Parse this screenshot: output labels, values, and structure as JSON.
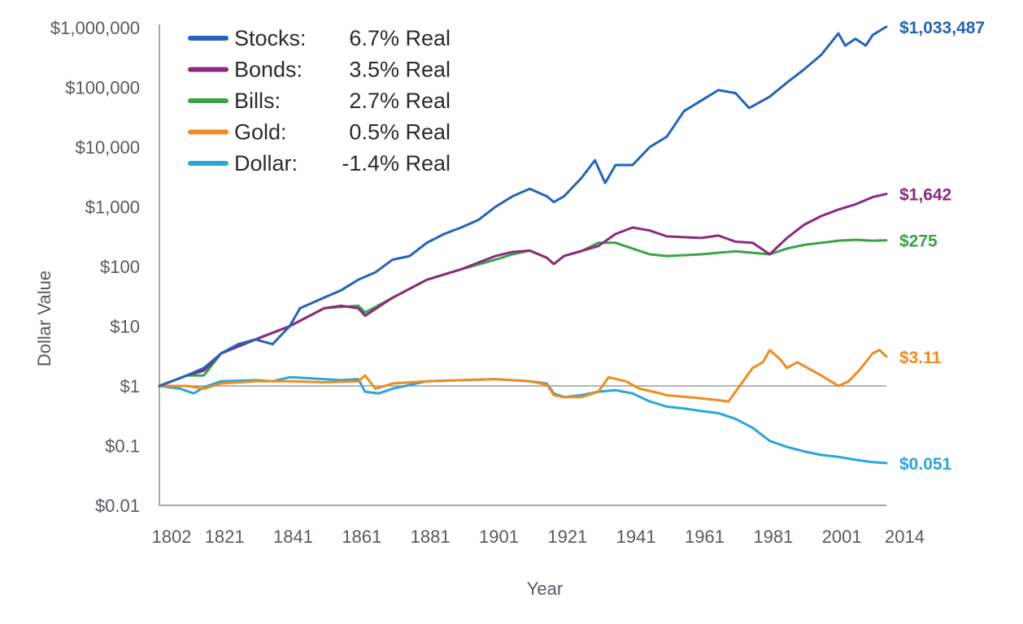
{
  "chart_data": {
    "type": "line",
    "xlabel": "Year",
    "ylabel": "Dollar Value",
    "y_scale": "log",
    "ylim": [
      0.01,
      1000000
    ],
    "xlim": [
      1802,
      2014
    ],
    "x_ticks": [
      "1802",
      "1821",
      "1841",
      "1861",
      "1881",
      "1901",
      "1921",
      "1941",
      "1961",
      "1981",
      "2001",
      "2014"
    ],
    "y_ticks": [
      {
        "value": 1000000,
        "label": "$1,000,000"
      },
      {
        "value": 100000,
        "label": "$100,000"
      },
      {
        "value": 10000,
        "label": "$10,000"
      },
      {
        "value": 1000,
        "label": "$1,000"
      },
      {
        "value": 100,
        "label": "$100"
      },
      {
        "value": 10,
        "label": "$10"
      },
      {
        "value": 1,
        "label": "$1"
      },
      {
        "value": 0.1,
        "label": "$0.1"
      },
      {
        "value": 0.01,
        "label": "$0.01"
      }
    ],
    "reference_line": 1,
    "legend_position": "top-left",
    "series": [
      {
        "name": "Stocks:",
        "rate": "6.7% Real",
        "color": "#2563b8",
        "end_label": "$1,033,487",
        "points": [
          [
            1802,
            1
          ],
          [
            1810,
            1.5
          ],
          [
            1815,
            2
          ],
          [
            1820,
            3.5
          ],
          [
            1825,
            5
          ],
          [
            1830,
            6
          ],
          [
            1835,
            5
          ],
          [
            1840,
            10
          ],
          [
            1843,
            20
          ],
          [
            1850,
            30
          ],
          [
            1855,
            40
          ],
          [
            1860,
            60
          ],
          [
            1865,
            80
          ],
          [
            1870,
            130
          ],
          [
            1875,
            150
          ],
          [
            1880,
            250
          ],
          [
            1885,
            350
          ],
          [
            1890,
            450
          ],
          [
            1895,
            600
          ],
          [
            1900,
            1000
          ],
          [
            1905,
            1500
          ],
          [
            1910,
            2000
          ],
          [
            1915,
            1500
          ],
          [
            1917,
            1200
          ],
          [
            1920,
            1500
          ],
          [
            1925,
            3000
          ],
          [
            1929,
            6000
          ],
          [
            1932,
            2500
          ],
          [
            1935,
            5000
          ],
          [
            1940,
            5000
          ],
          [
            1945,
            10000
          ],
          [
            1950,
            15000
          ],
          [
            1955,
            40000
          ],
          [
            1960,
            60000
          ],
          [
            1965,
            90000
          ],
          [
            1970,
            80000
          ],
          [
            1974,
            45000
          ],
          [
            1980,
            70000
          ],
          [
            1985,
            120000
          ],
          [
            1990,
            200000
          ],
          [
            1995,
            350000
          ],
          [
            2000,
            800000
          ],
          [
            2002,
            500000
          ],
          [
            2005,
            650000
          ],
          [
            2008,
            500000
          ],
          [
            2010,
            750000
          ],
          [
            2014,
            1033487
          ]
        ]
      },
      {
        "name": "Bonds:",
        "rate": "3.5% Real",
        "color": "#8b2a7d",
        "end_label": "$1,642",
        "points": [
          [
            1802,
            1
          ],
          [
            1810,
            1.5
          ],
          [
            1815,
            1.8
          ],
          [
            1820,
            3.5
          ],
          [
            1830,
            6
          ],
          [
            1840,
            10
          ],
          [
            1850,
            20
          ],
          [
            1855,
            22
          ],
          [
            1860,
            20
          ],
          [
            1862,
            15
          ],
          [
            1870,
            30
          ],
          [
            1880,
            60
          ],
          [
            1890,
            90
          ],
          [
            1900,
            150
          ],
          [
            1905,
            175
          ],
          [
            1910,
            185
          ],
          [
            1915,
            140
          ],
          [
            1917,
            110
          ],
          [
            1920,
            150
          ],
          [
            1930,
            220
          ],
          [
            1935,
            350
          ],
          [
            1940,
            450
          ],
          [
            1945,
            400
          ],
          [
            1950,
            320
          ],
          [
            1960,
            300
          ],
          [
            1965,
            330
          ],
          [
            1970,
            260
          ],
          [
            1975,
            250
          ],
          [
            1980,
            160
          ],
          [
            1985,
            300
          ],
          [
            1990,
            500
          ],
          [
            1995,
            700
          ],
          [
            2000,
            900
          ],
          [
            2005,
            1100
          ],
          [
            2010,
            1450
          ],
          [
            2014,
            1642
          ]
        ]
      },
      {
        "name": "Bills:",
        "rate": "2.7% Real",
        "color": "#3ba24a",
        "end_label": "$275",
        "points": [
          [
            1802,
            1
          ],
          [
            1810,
            1.5
          ],
          [
            1815,
            1.5
          ],
          [
            1820,
            3.5
          ],
          [
            1830,
            6
          ],
          [
            1840,
            10
          ],
          [
            1850,
            20
          ],
          [
            1860,
            22
          ],
          [
            1862,
            17
          ],
          [
            1870,
            30
          ],
          [
            1880,
            60
          ],
          [
            1890,
            90
          ],
          [
            1900,
            130
          ],
          [
            1905,
            160
          ],
          [
            1910,
            185
          ],
          [
            1915,
            140
          ],
          [
            1917,
            110
          ],
          [
            1920,
            150
          ],
          [
            1925,
            180
          ],
          [
            1930,
            250
          ],
          [
            1935,
            250
          ],
          [
            1940,
            200
          ],
          [
            1945,
            160
          ],
          [
            1950,
            150
          ],
          [
            1960,
            160
          ],
          [
            1970,
            180
          ],
          [
            1975,
            170
          ],
          [
            1980,
            160
          ],
          [
            1985,
            200
          ],
          [
            1990,
            230
          ],
          [
            2000,
            270
          ],
          [
            2005,
            280
          ],
          [
            2010,
            270
          ],
          [
            2014,
            275
          ]
        ]
      },
      {
        "name": "Gold:",
        "rate": "0.5% Real",
        "color": "#ee8c1f",
        "end_label": "$3.11",
        "points": [
          [
            1802,
            1
          ],
          [
            1810,
            1
          ],
          [
            1815,
            0.9
          ],
          [
            1820,
            1.1
          ],
          [
            1830,
            1.2
          ],
          [
            1840,
            1.2
          ],
          [
            1850,
            1.15
          ],
          [
            1860,
            1.2
          ],
          [
            1862,
            1.5
          ],
          [
            1865,
            0.9
          ],
          [
            1870,
            1.1
          ],
          [
            1880,
            1.2
          ],
          [
            1890,
            1.25
          ],
          [
            1900,
            1.3
          ],
          [
            1910,
            1.2
          ],
          [
            1915,
            1.05
          ],
          [
            1917,
            0.7
          ],
          [
            1920,
            0.65
          ],
          [
            1925,
            0.65
          ],
          [
            1930,
            0.8
          ],
          [
            1933,
            1.4
          ],
          [
            1938,
            1.2
          ],
          [
            1942,
            0.9
          ],
          [
            1946,
            0.8
          ],
          [
            1950,
            0.7
          ],
          [
            1960,
            0.62
          ],
          [
            1968,
            0.55
          ],
          [
            1970,
            0.8
          ],
          [
            1975,
            2
          ],
          [
            1978,
            2.5
          ],
          [
            1980,
            4
          ],
          [
            1983,
            2.8
          ],
          [
            1985,
            2
          ],
          [
            1988,
            2.5
          ],
          [
            1995,
            1.5
          ],
          [
            2000,
            1
          ],
          [
            2003,
            1.2
          ],
          [
            2006,
            1.8
          ],
          [
            2010,
            3.5
          ],
          [
            2012,
            4
          ],
          [
            2014,
            3.11
          ]
        ]
      },
      {
        "name": "Dollar:",
        "rate": "-1.4% Real",
        "color": "#2aa6dc",
        "end_label": "$0.051",
        "points": [
          [
            1802,
            1
          ],
          [
            1808,
            0.9
          ],
          [
            1812,
            0.75
          ],
          [
            1815,
            0.95
          ],
          [
            1820,
            1.2
          ],
          [
            1830,
            1.25
          ],
          [
            1835,
            1.2
          ],
          [
            1840,
            1.4
          ],
          [
            1845,
            1.35
          ],
          [
            1850,
            1.3
          ],
          [
            1855,
            1.25
          ],
          [
            1860,
            1.3
          ],
          [
            1862,
            0.8
          ],
          [
            1866,
            0.75
          ],
          [
            1870,
            0.9
          ],
          [
            1880,
            1.2
          ],
          [
            1890,
            1.25
          ],
          [
            1900,
            1.3
          ],
          [
            1910,
            1.2
          ],
          [
            1915,
            1.1
          ],
          [
            1917,
            0.75
          ],
          [
            1920,
            0.65
          ],
          [
            1925,
            0.7
          ],
          [
            1930,
            0.8
          ],
          [
            1935,
            0.85
          ],
          [
            1940,
            0.75
          ],
          [
            1945,
            0.55
          ],
          [
            1950,
            0.45
          ],
          [
            1955,
            0.42
          ],
          [
            1960,
            0.38
          ],
          [
            1965,
            0.35
          ],
          [
            1970,
            0.28
          ],
          [
            1975,
            0.2
          ],
          [
            1980,
            0.12
          ],
          [
            1985,
            0.095
          ],
          [
            1990,
            0.08
          ],
          [
            1995,
            0.07
          ],
          [
            2000,
            0.065
          ],
          [
            2005,
            0.058
          ],
          [
            2010,
            0.053
          ],
          [
            2014,
            0.051
          ]
        ]
      }
    ]
  }
}
